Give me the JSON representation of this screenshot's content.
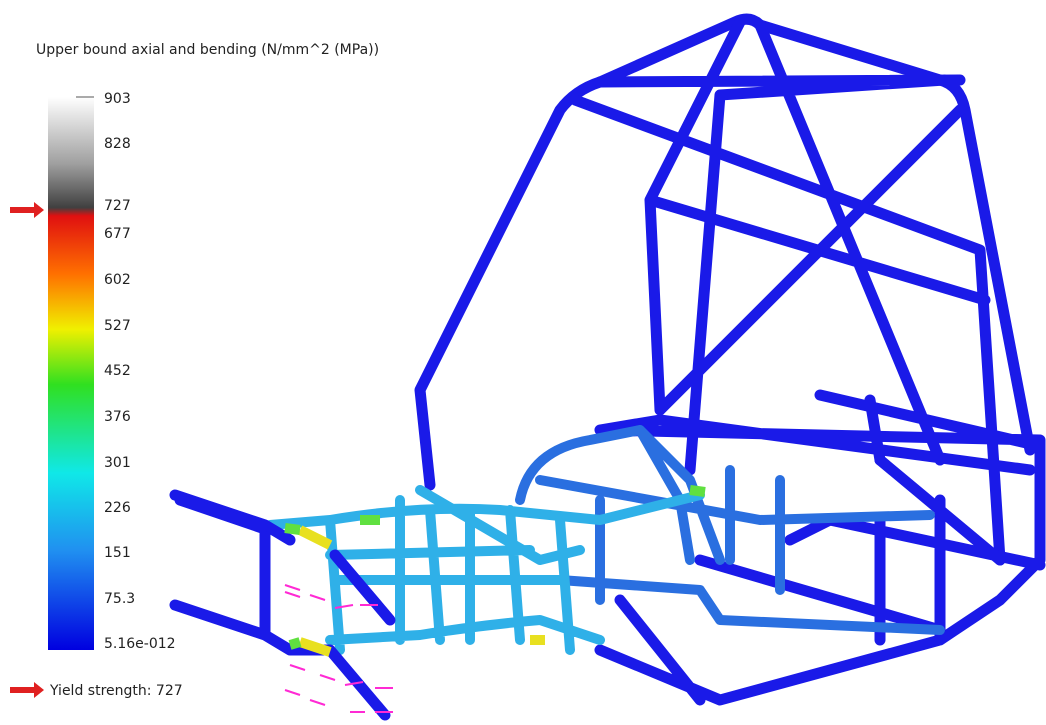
{
  "legend": {
    "title": "Upper bound axial and bending (N/mm^2 (MPa))",
    "ticks": [
      "903",
      "828",
      "727",
      "677",
      "602",
      "527",
      "452",
      "376",
      "301",
      "226",
      "151",
      "75.3",
      "5.16e-012"
    ]
  },
  "yield_label": "Yield strength: 727"
}
